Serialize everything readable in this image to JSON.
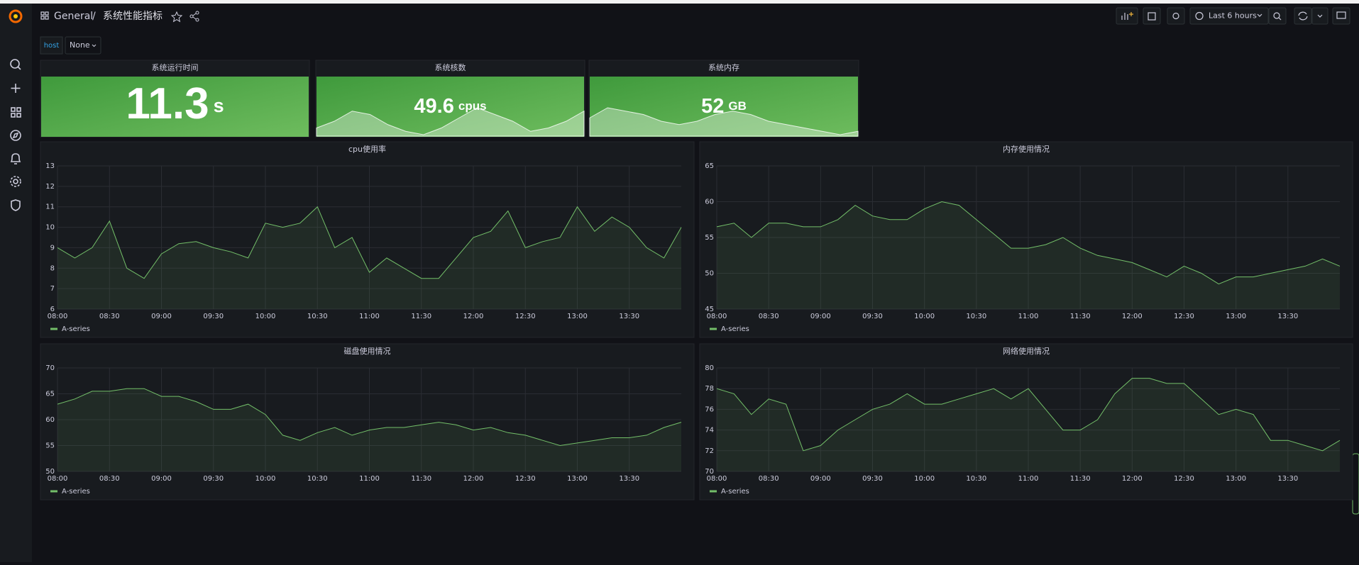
{
  "header": {
    "folder": "General",
    "separator": "/",
    "title": "系统性能指标",
    "time_range": "Last 6 hours"
  },
  "variables": [
    {
      "label": "host",
      "value": "None"
    }
  ],
  "stats": [
    {
      "title": "系统运行时间",
      "value": 11.3,
      "unit": "s"
    },
    {
      "title": "系统核数",
      "value": 49.6,
      "unit": "cpus",
      "sparkline": [
        47,
        49,
        52,
        51,
        48,
        46,
        45,
        47,
        50,
        53,
        51,
        49,
        46,
        47,
        49,
        52
      ]
    },
    {
      "title": "系统内存",
      "value": 52,
      "unit": "GB",
      "sparkline": [
        50,
        53,
        52,
        51,
        49,
        48,
        49,
        51,
        52,
        51,
        49,
        48,
        47,
        46,
        45,
        46
      ]
    }
  ],
  "chart_data": [
    {
      "type": "line",
      "title": "cpu使用率",
      "xlim": [
        0,
        360
      ],
      "xticks": [
        {
          "value": 0,
          "label": "08:00"
        },
        {
          "value": 30,
          "label": "08:30"
        },
        {
          "value": 60,
          "label": "09:00"
        },
        {
          "value": 90,
          "label": "09:30"
        },
        {
          "value": 120,
          "label": "10:00"
        },
        {
          "value": 150,
          "label": "10:30"
        },
        {
          "value": 180,
          "label": "11:00"
        },
        {
          "value": 210,
          "label": "11:30"
        },
        {
          "value": 240,
          "label": "12:00"
        },
        {
          "value": 270,
          "label": "12:30"
        },
        {
          "value": 300,
          "label": "13:00"
        },
        {
          "value": 330,
          "label": "13:30"
        }
      ],
      "ylim": [
        6,
        13
      ],
      "yticks": [
        6,
        7,
        8,
        9,
        10,
        11,
        12,
        13
      ],
      "grid": true,
      "series": [
        {
          "name": "A-series",
          "color": "#73bf69",
          "values": [
            9,
            8.5,
            9,
            10.3,
            8,
            7.5,
            8.7,
            9.2,
            9.3,
            9,
            8.8,
            8.5,
            10.2,
            10,
            10.2,
            11,
            9,
            9.5,
            7.8,
            8.5,
            8,
            7.5,
            7.5,
            8.5,
            9.5,
            9.8,
            10.8,
            9,
            9.3,
            9.5,
            11,
            9.8,
            10.5,
            10,
            9,
            8.5,
            10
          ]
        }
      ]
    },
    {
      "type": "line",
      "title": "内存使用情况",
      "xlim": [
        0,
        360
      ],
      "xticks": [
        {
          "value": 0,
          "label": "08:00"
        },
        {
          "value": 30,
          "label": "08:30"
        },
        {
          "value": 60,
          "label": "09:00"
        },
        {
          "value": 90,
          "label": "09:30"
        },
        {
          "value": 120,
          "label": "10:00"
        },
        {
          "value": 150,
          "label": "10:30"
        },
        {
          "value": 180,
          "label": "11:00"
        },
        {
          "value": 210,
          "label": "11:30"
        },
        {
          "value": 240,
          "label": "12:00"
        },
        {
          "value": 270,
          "label": "12:30"
        },
        {
          "value": 300,
          "label": "13:00"
        },
        {
          "value": 330,
          "label": "13:30"
        }
      ],
      "ylim": [
        45,
        65
      ],
      "yticks": [
        45,
        50,
        55,
        60,
        65
      ],
      "grid": true,
      "series": [
        {
          "name": "A-series",
          "color": "#73bf69",
          "values": [
            56.5,
            57,
            55,
            57,
            57,
            56.5,
            56.5,
            57.5,
            59.5,
            58,
            57.5,
            57.5,
            59,
            60,
            59.5,
            57.5,
            55.5,
            53.5,
            53.5,
            54,
            55,
            53.5,
            52.5,
            52,
            51.5,
            50.5,
            49.5,
            51,
            50,
            48.5,
            49.5,
            49.5,
            50,
            50.5,
            51,
            52,
            51
          ]
        }
      ]
    },
    {
      "type": "line",
      "title": "磁盘使用情况",
      "xlim": [
        0,
        360
      ],
      "xticks": [
        {
          "value": 0,
          "label": "08:00"
        },
        {
          "value": 30,
          "label": "08:30"
        },
        {
          "value": 60,
          "label": "09:00"
        },
        {
          "value": 90,
          "label": "09:30"
        },
        {
          "value": 120,
          "label": "10:00"
        },
        {
          "value": 150,
          "label": "10:30"
        },
        {
          "value": 180,
          "label": "11:00"
        },
        {
          "value": 210,
          "label": "11:30"
        },
        {
          "value": 240,
          "label": "12:00"
        },
        {
          "value": 270,
          "label": "12:30"
        },
        {
          "value": 300,
          "label": "13:00"
        },
        {
          "value": 330,
          "label": "13:30"
        }
      ],
      "ylim": [
        50,
        70
      ],
      "yticks": [
        50,
        55,
        60,
        65,
        70
      ],
      "grid": true,
      "series": [
        {
          "name": "A-series",
          "color": "#73bf69",
          "values": [
            63,
            64,
            65.5,
            65.5,
            66,
            66,
            64.5,
            64.5,
            63.5,
            62,
            62,
            63,
            61,
            57,
            56,
            57.5,
            58.5,
            57,
            58,
            58.5,
            58.5,
            59,
            59.5,
            59,
            58,
            58.5,
            57.5,
            57,
            56,
            55,
            55.5,
            56,
            56.5,
            56.5,
            57,
            58.5,
            59.5
          ]
        }
      ]
    },
    {
      "type": "line",
      "title": "网络使用情况",
      "xlim": [
        0,
        360
      ],
      "xticks": [
        {
          "value": 0,
          "label": "08:00"
        },
        {
          "value": 30,
          "label": "08:30"
        },
        {
          "value": 60,
          "label": "09:00"
        },
        {
          "value": 90,
          "label": "09:30"
        },
        {
          "value": 120,
          "label": "10:00"
        },
        {
          "value": 150,
          "label": "10:30"
        },
        {
          "value": 180,
          "label": "11:00"
        },
        {
          "value": 210,
          "label": "11:30"
        },
        {
          "value": 240,
          "label": "12:00"
        },
        {
          "value": 270,
          "label": "12:30"
        },
        {
          "value": 300,
          "label": "13:00"
        },
        {
          "value": 330,
          "label": "13:30"
        }
      ],
      "ylim": [
        70,
        80
      ],
      "yticks": [
        70,
        72,
        74,
        76,
        78,
        80
      ],
      "grid": true,
      "series": [
        {
          "name": "A-series",
          "color": "#73bf69",
          "values": [
            78,
            77.5,
            75.5,
            77,
            76.5,
            72,
            72.5,
            74,
            75,
            76,
            76.5,
            77.5,
            76.5,
            76.5,
            77,
            77.5,
            78,
            77,
            78,
            76,
            74,
            74,
            75,
            77.5,
            79,
            79,
            78.5,
            78.5,
            77,
            75.5,
            76,
            75.5,
            73,
            73,
            72.5,
            72,
            73
          ]
        }
      ]
    }
  ]
}
